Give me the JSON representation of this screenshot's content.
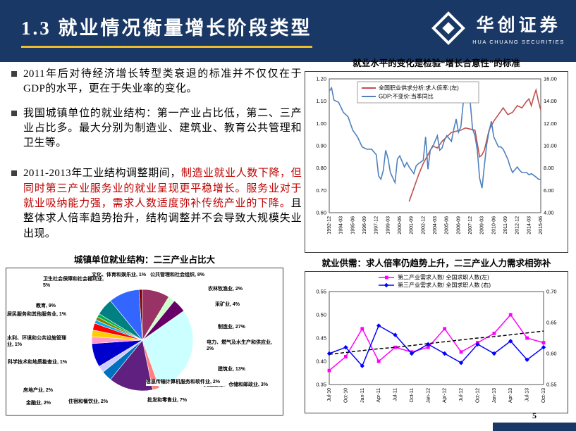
{
  "header": {
    "title": "1.3 就业情况衡量增长阶段类型",
    "logo_cn": "华创证券",
    "logo_en": "HUA CHUANG SECURITIES"
  },
  "bullets": [
    {
      "text": "2011年后对待经济增长转型类衰退的标准并不仅仅在于GDP的水平，更在于失业率的变化。"
    },
    {
      "text": "我国城镇单位的就业结构：第一产业占比低，第二、三产业占比多。最大分别为制造业、建筑业、教育公共管理和卫生等。"
    },
    {
      "part1": "2011-2013年工业结构调整期间，",
      "part2_red": "制造业就业人数下降，但同时第三产业服务业的就业呈现更平稳增长。服务业对于就业吸纳能力强，需求人数适度弥补传统产业的下降。",
      "part3": "且整体求人倍率趋势抬升，结构调整并不会导致大规模失业出现。"
    }
  ],
  "footer": {
    "page_number": "5"
  },
  "colors": {
    "header_navy": "#1a3866",
    "title_underline": "#edbe2a",
    "red_text": "#c00000"
  },
  "chart_data": [
    {
      "type": "line",
      "title": "就业水平的变化是检验“增长合意性”的标准",
      "legend": [
        "全国职业供求分析:求人倍率:(左)",
        "GDP:不变价:当季同比"
      ],
      "left_axis": {
        "min": 0.6,
        "max": 1.2,
        "ticks": [
          "0.60",
          "0.70",
          "0.80",
          "0.90",
          "1.00",
          "1.10",
          "1.20"
        ]
      },
      "right_axis": {
        "min": 4.0,
        "max": 16.0,
        "ticks": [
          "4.00",
          "6.00",
          "8.00",
          "10.00",
          "12.00",
          "14.00",
          "16.00"
        ]
      },
      "x_range_years": [
        1992.92,
        2015.42
      ],
      "x_tick_labels": [
        "1992-12",
        "1994-03",
        "1995-06",
        "1996-09",
        "1997-12",
        "1999-03",
        "2000-06",
        "2001-09",
        "2002-12",
        "2004-03",
        "2005-06",
        "2006-09",
        "2007-12",
        "2009-03",
        "2010-06",
        "2011-09",
        "2012-12",
        "2014-03",
        "2015-06"
      ],
      "grid": false,
      "legend_position": "top-inside",
      "series": [
        {
          "name": "全国职业供求分析:求人倍率:(左)",
          "axis": "left",
          "color": "#C0504D",
          "points": [
            [
              2001.42,
              0.65
            ],
            [
              2001.92,
              0.71
            ],
            [
              2002.42,
              0.77
            ],
            [
              2002.92,
              0.82
            ],
            [
              2003.42,
              0.86
            ],
            [
              2003.92,
              0.9
            ],
            [
              2004.42,
              0.89
            ],
            [
              2004.92,
              0.92
            ],
            [
              2005.42,
              0.94
            ],
            [
              2005.92,
              0.96
            ],
            [
              2006.42,
              0.965
            ],
            [
              2006.92,
              0.97
            ],
            [
              2007.42,
              0.98
            ],
            [
              2007.92,
              0.975
            ],
            [
              2008.42,
              0.97
            ],
            [
              2008.92,
              0.85
            ],
            [
              2009.17,
              0.86
            ],
            [
              2009.42,
              0.88
            ],
            [
              2009.92,
              0.97
            ],
            [
              2010.42,
              1.01
            ],
            [
              2010.92,
              1.04
            ],
            [
              2011.42,
              1.07
            ],
            [
              2011.92,
              1.04
            ],
            [
              2012.42,
              1.05
            ],
            [
              2012.92,
              1.08
            ],
            [
              2013.42,
              1.07
            ],
            [
              2013.92,
              1.1
            ],
            [
              2014.17,
              1.11
            ],
            [
              2014.42,
              1.08
            ],
            [
              2014.67,
              1.12
            ],
            [
              2014.92,
              1.15
            ],
            [
              2015.17,
              1.1
            ],
            [
              2015.42,
              1.06
            ]
          ]
        },
        {
          "name": "GDP:不变价:当季同比",
          "axis": "right",
          "color": "#4F81BD",
          "points": [
            [
              1992.92,
              14.9
            ],
            [
              1993.17,
              15.2
            ],
            [
              1993.42,
              14.1
            ],
            [
              1993.92,
              13.9
            ],
            [
              1994.42,
              13.0
            ],
            [
              1994.92,
              12.6
            ],
            [
              1995.42,
              11.4
            ],
            [
              1995.92,
              10.8
            ],
            [
              1996.42,
              9.9
            ],
            [
              1996.92,
              9.7
            ],
            [
              1997.42,
              9.7
            ],
            [
              1997.92,
              9.2
            ],
            [
              1998.17,
              7.3
            ],
            [
              1998.42,
              7.0
            ],
            [
              1998.67,
              7.8
            ],
            [
              1998.92,
              9.6
            ],
            [
              1999.17,
              8.9
            ],
            [
              1999.42,
              7.6
            ],
            [
              1999.92,
              6.7
            ],
            [
              2000.17,
              8.8
            ],
            [
              2000.42,
              9.1
            ],
            [
              2000.92,
              8.1
            ],
            [
              2001.17,
              8.5
            ],
            [
              2001.42,
              8.1
            ],
            [
              2001.92,
              7.5
            ],
            [
              2002.17,
              8.2
            ],
            [
              2002.42,
              8.4
            ],
            [
              2002.92,
              8.7
            ],
            [
              2003.17,
              10.8
            ],
            [
              2003.42,
              7.9
            ],
            [
              2003.67,
              9.6
            ],
            [
              2003.92,
              9.9
            ],
            [
              2004.17,
              10.4
            ],
            [
              2004.42,
              10.9
            ],
            [
              2004.67,
              9.6
            ],
            [
              2004.92,
              9.8
            ],
            [
              2005.17,
              10.5
            ],
            [
              2005.42,
              10.9
            ],
            [
              2005.92,
              10.4
            ],
            [
              2006.17,
              11.5
            ],
            [
              2006.42,
              12.4
            ],
            [
              2006.67,
              11.2
            ],
            [
              2006.92,
              11.7
            ],
            [
              2007.17,
              13.8
            ],
            [
              2007.42,
              15.0
            ],
            [
              2007.67,
              13.9
            ],
            [
              2007.92,
              13.9
            ],
            [
              2008.17,
              11.5
            ],
            [
              2008.42,
              10.9
            ],
            [
              2008.67,
              9.6
            ],
            [
              2008.92,
              7.1
            ],
            [
              2009.17,
              6.2
            ],
            [
              2009.42,
              8.2
            ],
            [
              2009.67,
              10.1
            ],
            [
              2009.92,
              11.3
            ],
            [
              2010.17,
              12.2
            ],
            [
              2010.42,
              10.8
            ],
            [
              2010.92,
              9.9
            ],
            [
              2011.17,
              9.9
            ],
            [
              2011.42,
              9.7
            ],
            [
              2011.92,
              8.8
            ],
            [
              2012.17,
              8.1
            ],
            [
              2012.42,
              7.6
            ],
            [
              2012.92,
              8.1
            ],
            [
              2013.17,
              7.8
            ],
            [
              2013.42,
              7.6
            ],
            [
              2013.92,
              7.6
            ],
            [
              2014.17,
              7.4
            ],
            [
              2014.42,
              7.5
            ],
            [
              2014.92,
              7.2
            ],
            [
              2015.17,
              7.0
            ],
            [
              2015.42,
              7.0
            ]
          ]
        }
      ]
    },
    {
      "type": "pie",
      "title": "城镇单位就业结构：二三产业占比大",
      "slices": [
        {
          "label": "公共管理和社会组织, 8%",
          "value": 8,
          "color": "#993366"
        },
        {
          "label": "农林牧渔业, 2%",
          "value": 2,
          "color": "#CCFFCC"
        },
        {
          "label": "采矿业, 4%",
          "value": 4,
          "color": "#660066"
        },
        {
          "label": "制造业, 27%",
          "value": 27,
          "color": "#CCFFFF"
        },
        {
          "label": "电力、燃气及水生产和供应业, 2%",
          "value": 2,
          "color": "#FF8080"
        },
        {
          "label": "建筑业, 13%",
          "value": 13,
          "color": "#602080"
        },
        {
          "label": "交通运输、仓储和邮政业, 3%",
          "value": 3,
          "color": "#0070C0"
        },
        {
          "label": "信息传输计算机服务和软件业, 2%",
          "value": 2,
          "color": "#CCCCFF"
        },
        {
          "label": "批发和零售业, 7%",
          "value": 7,
          "color": "#0000CC"
        },
        {
          "label": "住宿和餐饮业, 2%",
          "value": 2,
          "color": "#FF99CC"
        },
        {
          "label": "金融业, 2%",
          "value": 2,
          "color": "#FFCC00"
        },
        {
          "label": "房地产业, 2%",
          "value": 2,
          "color": "#FF0000"
        },
        {
          "label": "科学技术和地质勘查业, 1%",
          "value": 1,
          "color": "#00B0F0"
        },
        {
          "label": "水利、环境和公共设施管理业, 1%",
          "value": 1,
          "color": "#808000"
        },
        {
          "label": "居民服务和其他服务业, 1%",
          "value": 1,
          "color": "#00B050"
        },
        {
          "label": "卫生社会保障和社会福利业, 5%",
          "value": 5,
          "color": "#008080"
        },
        {
          "label": "教育, 9%",
          "value": 9,
          "color": "#3366FF"
        },
        {
          "label": "文化、体育和娱乐业, 1%",
          "value": 1,
          "color": "#800000"
        }
      ]
    },
    {
      "type": "line",
      "title": "就业供需：求人倍率仍趋势上升，二三产业人力需求相弥补",
      "legend": [
        "第二产业需求人数/ 全国求职人数(左)",
        "第三产业需求人数/ 全国求职人数 (右)"
      ],
      "categories": [
        "Jul-10",
        "Oct-10",
        "Jan-11",
        "Apr-11",
        "Jul-11",
        "Oct-11",
        "Jan-12",
        "Apr-12",
        "Jul-12",
        "Oct-12",
        "Jan-13",
        "Apr-13",
        "Jul-13",
        "Oct-13"
      ],
      "left_axis": {
        "min": 0.35,
        "max": 0.55,
        "ticks": [
          "0.35",
          "0.40",
          "0.45",
          "0.50",
          "0.55"
        ]
      },
      "right_axis": {
        "min": 0.55,
        "max": 0.7,
        "ticks": [
          "0.55",
          "0.60",
          "0.65",
          "0.70"
        ]
      },
      "grid": false,
      "legend_position": "top-inside",
      "series": [
        {
          "name": "第二产业需求人数/ 全国求职人数(左)",
          "axis": "left",
          "color": "#FF00FF",
          "marker": "square",
          "values": [
            0.38,
            0.41,
            0.47,
            0.4,
            0.43,
            0.42,
            0.43,
            0.47,
            0.42,
            0.44,
            0.46,
            0.5,
            0.45,
            0.44
          ]
        },
        {
          "name": "第三产业需求人数/ 全国求职人数 (右)",
          "axis": "right",
          "color": "#0000FF",
          "marker": "diamond",
          "values": [
            0.6,
            0.61,
            0.58,
            0.645,
            0.63,
            0.6,
            0.615,
            0.6,
            0.585,
            0.615,
            0.6,
            0.62,
            0.59,
            0.61
          ]
        },
        {
          "name": "趋势线",
          "axis": "left",
          "color": "#000000",
          "dashed": true,
          "values": [
            0.415,
            0.419,
            0.423,
            0.427,
            0.43,
            0.434,
            0.438,
            0.442,
            0.446,
            0.45,
            0.453,
            0.457,
            0.461,
            0.465
          ]
        }
      ]
    }
  ]
}
